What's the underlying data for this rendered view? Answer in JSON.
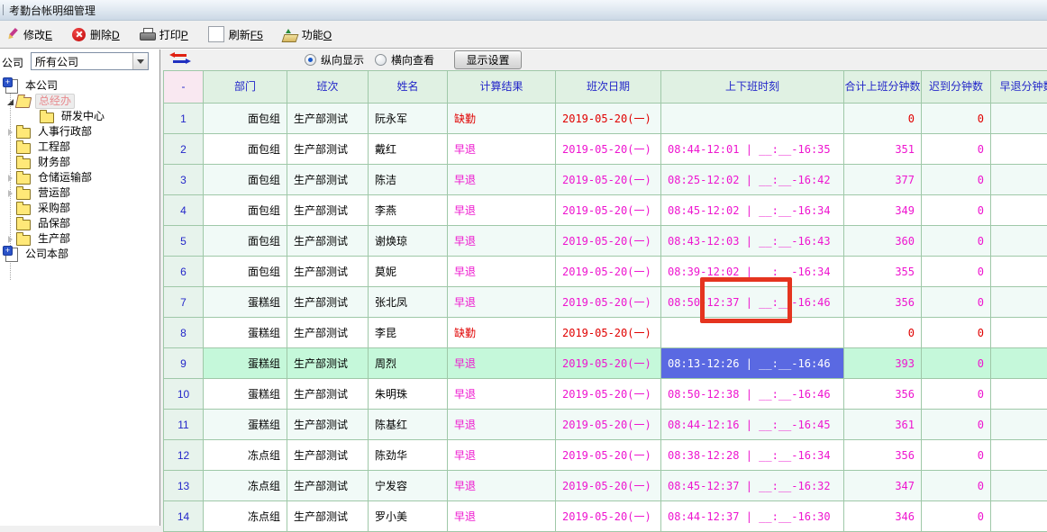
{
  "window": {
    "title": "考勤台帐明细管理"
  },
  "toolbar": {
    "buttons": [
      {
        "label": "修改",
        "shortcut": "E",
        "icon": "edit-icon"
      },
      {
        "label": "删除",
        "shortcut": "D",
        "icon": "delete-icon"
      },
      {
        "label": "打印",
        "shortcut": "P",
        "icon": "print-icon"
      },
      {
        "label": "刷新",
        "shortcut": "F5",
        "icon": "refresh-icon"
      },
      {
        "label": "功能",
        "shortcut": "O",
        "icon": "function-icon"
      }
    ]
  },
  "sidebar": {
    "company_label": "公司",
    "company_value": "所有公司",
    "tree": [
      {
        "label": "本公司",
        "level": 0,
        "icon": "company",
        "expander": "none",
        "selected": false
      },
      {
        "label": "总经办",
        "level": 1,
        "icon": "folder-open",
        "expander": "expanded",
        "selected": true
      },
      {
        "label": "研发中心",
        "level": 2,
        "icon": "folder",
        "expander": "none",
        "selected": false
      },
      {
        "label": "人事行政部",
        "level": 1,
        "icon": "folder",
        "expander": "collapsed",
        "selected": false
      },
      {
        "label": "工程部",
        "level": 1,
        "icon": "folder",
        "expander": "none",
        "selected": false
      },
      {
        "label": "财务部",
        "level": 1,
        "icon": "folder",
        "expander": "none",
        "selected": false
      },
      {
        "label": "仓储运输部",
        "level": 1,
        "icon": "folder",
        "expander": "collapsed",
        "selected": false
      },
      {
        "label": "营运部",
        "level": 1,
        "icon": "folder",
        "expander": "collapsed",
        "selected": false
      },
      {
        "label": "采购部",
        "level": 1,
        "icon": "folder",
        "expander": "none",
        "selected": false
      },
      {
        "label": "品保部",
        "level": 1,
        "icon": "folder",
        "expander": "none",
        "selected": false
      },
      {
        "label": "生产部",
        "level": 1,
        "icon": "folder",
        "expander": "collapsed",
        "selected": false
      },
      {
        "label": "公司本部",
        "level": 0,
        "icon": "company",
        "expander": "none",
        "selected": false
      }
    ]
  },
  "view_bar": {
    "vertical_label": "纵向显示",
    "vertical_checked": true,
    "horizontal_label": "横向查看",
    "horizontal_checked": false,
    "settings_label": "显示设置"
  },
  "table": {
    "columns": [
      "-",
      "部门",
      "班次",
      "姓名",
      "计算结果",
      "班次日期",
      "上下班时刻",
      "合计上班分钟数",
      "迟到分钟数",
      "早退分钟数"
    ],
    "rows": [
      {
        "n": "1",
        "dept": "面包组",
        "shift": "生产部测试",
        "name": "阮永军",
        "result": "缺勤",
        "status": "absent",
        "date": "2019-05-20(一)",
        "time": "",
        "total": "0",
        "late": "0",
        "selected": false
      },
      {
        "n": "2",
        "dept": "面包组",
        "shift": "生产部测试",
        "name": "戴红",
        "result": "早退",
        "status": "early",
        "date": "2019-05-20(一)",
        "time": "08:44-12:01 | __:__-16:35",
        "total": "351",
        "late": "0",
        "selected": false
      },
      {
        "n": "3",
        "dept": "面包组",
        "shift": "生产部测试",
        "name": "陈洁",
        "result": "早退",
        "status": "early",
        "date": "2019-05-20(一)",
        "time": "08:25-12:02 | __:__-16:42",
        "total": "377",
        "late": "0",
        "selected": false
      },
      {
        "n": "4",
        "dept": "面包组",
        "shift": "生产部测试",
        "name": "李燕",
        "result": "早退",
        "status": "early",
        "date": "2019-05-20(一)",
        "time": "08:45-12:02 | __:__-16:34",
        "total": "349",
        "late": "0",
        "selected": false
      },
      {
        "n": "5",
        "dept": "面包组",
        "shift": "生产部测试",
        "name": "谢焕琼",
        "result": "早退",
        "status": "early",
        "date": "2019-05-20(一)",
        "time": "08:43-12:03 | __:__-16:43",
        "total": "360",
        "late": "0",
        "selected": false
      },
      {
        "n": "6",
        "dept": "面包组",
        "shift": "生产部测试",
        "name": "莫妮",
        "result": "早退",
        "status": "early",
        "date": "2019-05-20(一)",
        "time": "08:39-12:02 | __:__-16:34",
        "total": "355",
        "late": "0",
        "selected": false
      },
      {
        "n": "7",
        "dept": "蛋糕组",
        "shift": "生产部测试",
        "name": "张北凤",
        "result": "早退",
        "status": "early",
        "date": "2019-05-20(一)",
        "time": "08:50-12:37 | __:__-16:46",
        "total": "356",
        "late": "0",
        "selected": false
      },
      {
        "n": "8",
        "dept": "蛋糕组",
        "shift": "生产部测试",
        "name": "李昆",
        "result": "缺勤",
        "status": "absent",
        "date": "2019-05-20(一)",
        "time": "",
        "total": "0",
        "late": "0",
        "selected": false
      },
      {
        "n": "9",
        "dept": "蛋糕组",
        "shift": "生产部测试",
        "name": "周烈",
        "result": "早退",
        "status": "early",
        "date": "2019-05-20(一)",
        "time": "08:13-12:26 | __:__-16:46",
        "total": "393",
        "late": "0",
        "selected": true
      },
      {
        "n": "10",
        "dept": "蛋糕组",
        "shift": "生产部测试",
        "name": "朱明珠",
        "result": "早退",
        "status": "early",
        "date": "2019-05-20(一)",
        "time": "08:50-12:38 | __:__-16:46",
        "total": "356",
        "late": "0",
        "selected": false
      },
      {
        "n": "11",
        "dept": "蛋糕组",
        "shift": "生产部测试",
        "name": "陈基红",
        "result": "早退",
        "status": "early",
        "date": "2019-05-20(一)",
        "time": "08:44-12:16 | __:__-16:45",
        "total": "361",
        "late": "0",
        "selected": false
      },
      {
        "n": "12",
        "dept": "冻点组",
        "shift": "生产部测试",
        "name": "陈劲华",
        "result": "早退",
        "status": "early",
        "date": "2019-05-20(一)",
        "time": "08:38-12:28 | __:__-16:34",
        "total": "356",
        "late": "0",
        "selected": false
      },
      {
        "n": "13",
        "dept": "冻点组",
        "shift": "生产部测试",
        "name": "宁发容",
        "result": "早退",
        "status": "early",
        "date": "2019-05-20(一)",
        "time": "08:45-12:37 | __:__-16:32",
        "total": "347",
        "late": "0",
        "selected": false
      },
      {
        "n": "14",
        "dept": "冻点组",
        "shift": "生产部测试",
        "name": "罗小美",
        "result": "早退",
        "status": "early",
        "date": "2019-05-20(一)",
        "time": "08:44-12:37 | __:__-16:30",
        "total": "346",
        "late": "0",
        "selected": false
      }
    ]
  },
  "colors": {
    "early_text": "#ee15cf",
    "absent_text": "#e00000",
    "header_text": "#2326c9",
    "grid_border": "#9fc8a8",
    "header_bg": "#e0f1e3",
    "header_first_bg": "#f9e8f1",
    "row_odd_bg": "#f1faf7",
    "selected_row_bg": "#c5f8da",
    "selected_cell_bg": "#5a69e2",
    "annotation_red": "#e5341f"
  }
}
